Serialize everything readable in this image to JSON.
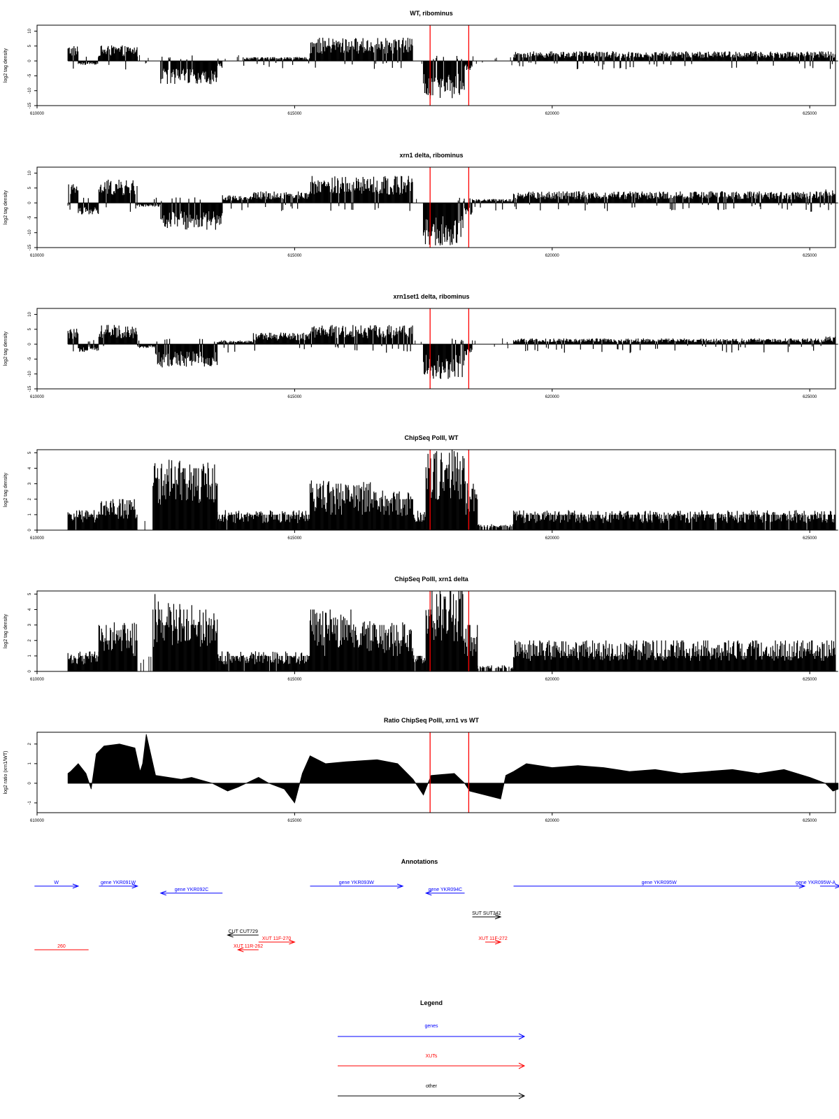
{
  "chart_data": [
    {
      "type": "bar",
      "title": "WT, ribominus",
      "ylabel": "log2 tag density",
      "xlim": [
        610000,
        625500
      ],
      "ylim": [
        -15,
        12
      ],
      "yticks": [
        10,
        5,
        0,
        -5,
        -10,
        -15
      ],
      "xticks": [
        610000,
        615000,
        620000,
        625000
      ],
      "xtick_labels": [
        "610000",
        "615000",
        "620000",
        "625000"
      ],
      "marker_lines": [
        617630,
        618380
      ],
      "marker_color": "#ff0000",
      "bar_color": "#000000",
      "profile": [
        {
          "start": 610600,
          "end": 610800,
          "value": 4
        },
        {
          "start": 610800,
          "end": 611200,
          "value": -1
        },
        {
          "start": 611200,
          "end": 611950,
          "value": 4
        },
        {
          "start": 611950,
          "end": 612400,
          "value": 0
        },
        {
          "start": 612400,
          "end": 613500,
          "value": -6
        },
        {
          "start": 613500,
          "end": 613600,
          "value": -2
        },
        {
          "start": 613600,
          "end": 614000,
          "value": 0
        },
        {
          "start": 614000,
          "end": 615300,
          "value": 1
        },
        {
          "start": 615300,
          "end": 617300,
          "value": 6
        },
        {
          "start": 617300,
          "end": 617500,
          "value": 0
        },
        {
          "start": 617500,
          "end": 618300,
          "value": -10
        },
        {
          "start": 618300,
          "end": 618450,
          "value": -3
        },
        {
          "start": 618450,
          "end": 619250,
          "value": 0
        },
        {
          "start": 619250,
          "end": 625500,
          "value": 2.5
        }
      ]
    },
    {
      "type": "bar",
      "title": "xrn1 delta, ribominus",
      "ylabel": "log2 tag density",
      "xlim": [
        610000,
        625500
      ],
      "ylim": [
        -15,
        12
      ],
      "yticks": [
        10,
        5,
        0,
        -5,
        -10,
        -15
      ],
      "xticks": [
        610000,
        615000,
        620000,
        625000
      ],
      "xtick_labels": [
        "610000",
        "615000",
        "620000",
        "625000"
      ],
      "marker_lines": [
        617630,
        618380
      ],
      "marker_color": "#ff0000",
      "bar_color": "#000000",
      "profile": [
        {
          "start": 610600,
          "end": 610800,
          "value": 5
        },
        {
          "start": 610800,
          "end": 611200,
          "value": -3
        },
        {
          "start": 611200,
          "end": 611950,
          "value": 6
        },
        {
          "start": 611950,
          "end": 612400,
          "value": -1
        },
        {
          "start": 612400,
          "end": 613600,
          "value": -7
        },
        {
          "start": 613600,
          "end": 614200,
          "value": 2
        },
        {
          "start": 614200,
          "end": 615300,
          "value": 3
        },
        {
          "start": 615300,
          "end": 617300,
          "value": 7
        },
        {
          "start": 617300,
          "end": 617500,
          "value": 0
        },
        {
          "start": 617500,
          "end": 618300,
          "value": -11
        },
        {
          "start": 618300,
          "end": 618450,
          "value": -3
        },
        {
          "start": 618450,
          "end": 619250,
          "value": 1
        },
        {
          "start": 619250,
          "end": 625300,
          "value": 3
        },
        {
          "start": 625300,
          "end": 625500,
          "value": 4
        }
      ]
    },
    {
      "type": "bar",
      "title": "xrn1set1 delta, ribominus",
      "ylabel": "log2 tag density",
      "xlim": [
        610000,
        625500
      ],
      "ylim": [
        -15,
        12
      ],
      "yticks": [
        10,
        5,
        0,
        -5,
        -10,
        -15
      ],
      "xticks": [
        610000,
        615000,
        620000,
        625000
      ],
      "xtick_labels": [
        "610000",
        "615000",
        "620000",
        "625000"
      ],
      "marker_lines": [
        617630,
        618380
      ],
      "marker_color": "#ff0000",
      "bar_color": "#000000",
      "profile": [
        {
          "start": 610600,
          "end": 610800,
          "value": 4
        },
        {
          "start": 610800,
          "end": 611200,
          "value": -2
        },
        {
          "start": 611200,
          "end": 611950,
          "value": 5
        },
        {
          "start": 611950,
          "end": 612300,
          "value": -1
        },
        {
          "start": 612300,
          "end": 613500,
          "value": -6
        },
        {
          "start": 613500,
          "end": 614200,
          "value": 1
        },
        {
          "start": 614200,
          "end": 615300,
          "value": 3
        },
        {
          "start": 615300,
          "end": 617300,
          "value": 5
        },
        {
          "start": 617300,
          "end": 617500,
          "value": 0
        },
        {
          "start": 617500,
          "end": 618300,
          "value": -9
        },
        {
          "start": 618300,
          "end": 618450,
          "value": -3
        },
        {
          "start": 618450,
          "end": 619250,
          "value": 0
        },
        {
          "start": 619250,
          "end": 625300,
          "value": 1.5
        },
        {
          "start": 625300,
          "end": 625500,
          "value": 2
        }
      ]
    },
    {
      "type": "bar",
      "title": "ChipSeq PolII, WT",
      "ylabel": "log2 tag density",
      "xlim": [
        610000,
        625500
      ],
      "ylim": [
        0,
        5.2
      ],
      "yticks": [
        0,
        1,
        2,
        3,
        4,
        5
      ],
      "xticks": [
        610000,
        615000,
        620000,
        625000
      ],
      "xtick_labels": [
        "610000",
        "615000",
        "620000",
        "625000"
      ],
      "marker_lines": [
        617630,
        618380
      ],
      "marker_color": "#ff0000",
      "bar_color": "#000000",
      "profile": [
        {
          "start": 610600,
          "end": 611200,
          "value": 1
        },
        {
          "start": 611200,
          "end": 611950,
          "value": 1.5
        },
        {
          "start": 611950,
          "end": 612250,
          "value": 0
        },
        {
          "start": 612250,
          "end": 613500,
          "value": 3.5
        },
        {
          "start": 613500,
          "end": 615300,
          "value": 1
        },
        {
          "start": 615300,
          "end": 616500,
          "value": 2.5
        },
        {
          "start": 616500,
          "end": 617300,
          "value": 2
        },
        {
          "start": 617300,
          "end": 617550,
          "value": 1
        },
        {
          "start": 617550,
          "end": 618300,
          "value": 4
        },
        {
          "start": 618300,
          "end": 618550,
          "value": 2.5
        },
        {
          "start": 618550,
          "end": 619250,
          "value": 0.3
        },
        {
          "start": 619250,
          "end": 625500,
          "value": 1
        }
      ]
    },
    {
      "type": "bar",
      "title": "ChipSeq PolII, xrn1 delta",
      "ylabel": "log2 tag density",
      "xlim": [
        610000,
        625500
      ],
      "ylim": [
        0,
        5.2
      ],
      "yticks": [
        0,
        1,
        2,
        3,
        4,
        5
      ],
      "xticks": [
        610000,
        615000,
        620000,
        625000
      ],
      "xtick_labels": [
        "610000",
        "615000",
        "620000",
        "625000"
      ],
      "marker_lines": [
        617630,
        618380
      ],
      "marker_color": "#ff0000",
      "bar_color": "#000000",
      "profile": [
        {
          "start": 610600,
          "end": 611200,
          "value": 1
        },
        {
          "start": 611200,
          "end": 611950,
          "value": 2.5
        },
        {
          "start": 611950,
          "end": 612250,
          "value": 0
        },
        {
          "start": 612250,
          "end": 613500,
          "value": 3.5
        },
        {
          "start": 613500,
          "end": 615300,
          "value": 1
        },
        {
          "start": 615300,
          "end": 616200,
          "value": 3
        },
        {
          "start": 616200,
          "end": 617300,
          "value": 2.5
        },
        {
          "start": 617300,
          "end": 617550,
          "value": 0.8
        },
        {
          "start": 617550,
          "end": 618300,
          "value": 4.3
        },
        {
          "start": 618300,
          "end": 618550,
          "value": 2.5
        },
        {
          "start": 618550,
          "end": 619250,
          "value": 0.3
        },
        {
          "start": 619250,
          "end": 625500,
          "value": 1.5
        }
      ]
    },
    {
      "type": "area",
      "title": "Ratio ChipSeq PolII, xrn1 vs WT",
      "ylabel": "log2 ratio (xrn1/WT)",
      "xlim": [
        610000,
        625500
      ],
      "ylim": [
        -1.5,
        2.6
      ],
      "yticks": [
        -1,
        0,
        1,
        2
      ],
      "xticks": [
        610000,
        615000,
        620000,
        625000
      ],
      "xtick_labels": [
        "610000",
        "615000",
        "620000",
        "625000"
      ],
      "marker_lines": [
        617630,
        618380
      ],
      "marker_color": "#ff0000",
      "fill_color": "#000000",
      "x": [
        610600,
        610650,
        610800,
        610950,
        611050,
        611150,
        611300,
        611600,
        611900,
        612000,
        612050,
        612120,
        612300,
        612800,
        613000,
        613400,
        613700,
        613900,
        614300,
        614500,
        614800,
        615000,
        615150,
        615300,
        615600,
        616000,
        616600,
        617000,
        617300,
        617500,
        617650,
        618100,
        618300,
        618400,
        618700,
        619000,
        619100,
        619250,
        619500,
        620000,
        620500,
        621000,
        621500,
        622000,
        622500,
        623000,
        623500,
        624000,
        624500,
        625000,
        625300,
        625450,
        625550
      ],
      "values": [
        0.5,
        0.6,
        1.0,
        0.5,
        -0.3,
        1.5,
        1.9,
        2.0,
        1.8,
        0.6,
        1.0,
        2.5,
        0.4,
        0.2,
        0.3,
        0.0,
        -0.4,
        -0.2,
        0.3,
        0.0,
        -0.3,
        -1.0,
        0.5,
        1.4,
        1.0,
        1.1,
        1.2,
        1.0,
        0.2,
        -0.6,
        0.4,
        0.5,
        0.0,
        -0.4,
        -0.6,
        -0.8,
        0.4,
        0.6,
        1.0,
        0.8,
        0.9,
        0.8,
        0.6,
        0.7,
        0.5,
        0.6,
        0.7,
        0.5,
        0.7,
        0.3,
        0.0,
        -0.4,
        -0.3
      ]
    }
  ],
  "annotations": {
    "title": "Annotations",
    "features": [
      {
        "label": "W",
        "start": 609950,
        "end": 610800,
        "strand": "+",
        "color": "#0000ff",
        "row": "genes"
      },
      {
        "label": "gene YKR091W",
        "start": 611200,
        "end": 611950,
        "strand": "+",
        "color": "#0000ff",
        "row": "genes"
      },
      {
        "label": "gene YKR092C",
        "start": 612400,
        "end": 613600,
        "strand": "-",
        "color": "#0000ff",
        "row": "genes-low"
      },
      {
        "label": "gene YKR093W",
        "start": 615300,
        "end": 617100,
        "strand": "+",
        "color": "#0000ff",
        "row": "genes"
      },
      {
        "label": "gene YKR094C",
        "start": 617550,
        "end": 618300,
        "strand": "-",
        "color": "#0000ff",
        "row": "genes-low"
      },
      {
        "label": "gene YKR095W",
        "start": 619250,
        "end": 624900,
        "strand": "+",
        "color": "#0000ff",
        "row": "genes"
      },
      {
        "label": "gene YKR095W-A",
        "start": 625200,
        "end": 625600,
        "strand": "+",
        "color": "#0000ff",
        "row": "genes"
      },
      {
        "label": "SUT SUT342",
        "start": 618450,
        "end": 619000,
        "strand": "+",
        "color": "#000000",
        "row": "other"
      },
      {
        "label": "CUT CUT729",
        "start": 613700,
        "end": 614300,
        "strand": "-",
        "color": "#000000",
        "row": "cut"
      },
      {
        "label": "XUT 11F-270",
        "start": 614300,
        "end": 615000,
        "strand": "+",
        "color": "#ff0000",
        "row": "xut-high"
      },
      {
        "label": "XUT 11R-262",
        "start": 613900,
        "end": 614300,
        "strand": "-",
        "color": "#ff0000",
        "row": "xut-low"
      },
      {
        "label": "XUT 11F-272",
        "start": 618700,
        "end": 619000,
        "strand": "+",
        "color": "#ff0000",
        "row": "xut-high"
      },
      {
        "label": "260",
        "start": 609950,
        "end": 611000,
        "strand": ".",
        "color": "#ff0000",
        "row": "xut-low"
      }
    ]
  },
  "legend": {
    "title": "Legend",
    "items": [
      {
        "label": "genes",
        "color": "#0000ff"
      },
      {
        "label": "XUTs",
        "color": "#ff0000"
      },
      {
        "label": "other",
        "color": "#000000"
      }
    ]
  }
}
